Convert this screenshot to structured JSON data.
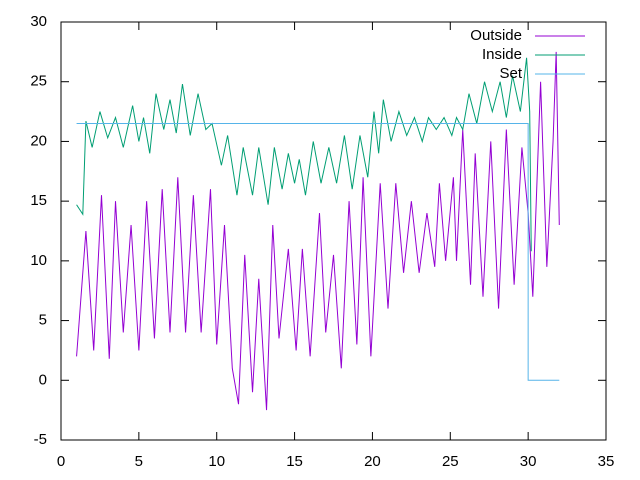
{
  "chart_data": {
    "type": "line",
    "xlim": [
      0,
      35
    ],
    "xticks": [
      0,
      5,
      10,
      15,
      20,
      25,
      30,
      35
    ],
    "ylim": [
      -5,
      30
    ],
    "yticks": [
      -5,
      0,
      5,
      10,
      15,
      20,
      25,
      30
    ],
    "legend": "upper right",
    "series": [
      {
        "name": "Outside",
        "color": "#9400d3",
        "x": [
          1,
          1.6,
          2.1,
          2.6,
          3.1,
          3.5,
          4.0,
          4.5,
          5.0,
          5.5,
          6.0,
          6.5,
          7.0,
          7.5,
          8.0,
          8.5,
          9.0,
          9.6,
          10.0,
          10.5,
          11.0,
          11.4,
          11.8,
          12.3,
          12.7,
          13.2,
          13.6,
          14.0,
          14.6,
          15.1,
          15.5,
          16.0,
          16.6,
          17.0,
          17.5,
          18.0,
          18.5,
          19.0,
          19.4,
          19.9,
          20.5,
          21.0,
          21.5,
          22.0,
          22.5,
          23.0,
          23.5,
          24.0,
          24.3,
          24.7,
          25.2,
          25.4,
          25.8,
          26.3,
          26.6,
          27.1,
          27.6,
          28.1,
          28.6,
          29.1,
          29.6,
          30.0,
          30.3,
          30.8,
          31.2,
          31.6,
          31.8,
          32.0
        ],
        "values": [
          2.0,
          12.5,
          2.5,
          15.5,
          1.8,
          15,
          4,
          13,
          2.5,
          15,
          3.5,
          16,
          4,
          17,
          4,
          15.5,
          4,
          16,
          3,
          13,
          1,
          -2,
          10.5,
          -1,
          8.5,
          -2.5,
          13,
          3.5,
          11,
          2.5,
          11,
          2,
          14,
          4,
          10.5,
          1,
          15,
          3,
          17,
          2,
          16.5,
          6,
          16.5,
          9,
          15,
          9,
          14,
          9.5,
          16.5,
          10,
          17,
          10,
          21,
          8,
          19,
          7,
          20,
          6,
          21,
          8,
          19.5,
          14,
          7,
          25,
          9.5,
          20,
          27.5,
          13
        ]
      },
      {
        "name": "Inside",
        "color": "#009e73",
        "x": [
          1,
          1.4,
          1.6,
          2.0,
          2.5,
          3.0,
          3.5,
          4.0,
          4.6,
          5.0,
          5.3,
          5.7,
          6.1,
          6.6,
          7.0,
          7.4,
          7.8,
          8.3,
          8.8,
          9.3,
          9.7,
          10.3,
          10.7,
          11.3,
          11.7,
          12.3,
          12.7,
          13.3,
          13.7,
          14.2,
          14.6,
          15.0,
          15.3,
          15.7,
          16.2,
          16.7,
          17.2,
          17.7,
          18.2,
          18.7,
          19.2,
          19.7,
          20.1,
          20.4,
          20.7,
          21.2,
          21.7,
          22.2,
          22.7,
          23.2,
          23.6,
          24.1,
          24.6,
          25.1,
          25.4,
          25.8,
          26.2,
          26.7,
          27.2,
          27.7,
          28.2,
          28.6,
          29.0,
          29.5,
          29.9,
          30.1,
          30.2
        ],
        "values": [
          14.7,
          13.9,
          21.7,
          19.5,
          22.5,
          20.3,
          22,
          19.5,
          23,
          20,
          22,
          19,
          24,
          21,
          23.5,
          20.7,
          24.8,
          20.5,
          24,
          21,
          21.5,
          18,
          20.5,
          15.5,
          19.5,
          15.5,
          19.5,
          14.7,
          19.5,
          16,
          19,
          16.5,
          18.5,
          15.5,
          20,
          16.5,
          19.5,
          16.5,
          20.5,
          16,
          20.5,
          17,
          22.5,
          19,
          23.5,
          20,
          22.5,
          20.5,
          22,
          20,
          22,
          21,
          22,
          20.5,
          22,
          21,
          24,
          21.5,
          25,
          22.5,
          25,
          22,
          25.5,
          22.5,
          27,
          22.5,
          10.8
        ]
      },
      {
        "name": "Set",
        "color": "#56b4e9",
        "x": [
          1,
          30,
          30,
          32
        ],
        "values": [
          21.5,
          21.5,
          0,
          0
        ]
      }
    ]
  }
}
